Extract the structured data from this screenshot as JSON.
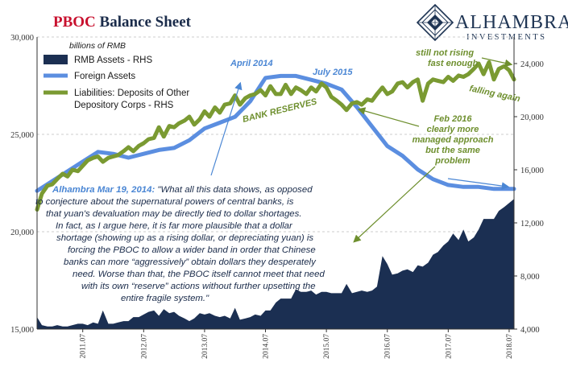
{
  "header": {
    "title_part1": "PBOC",
    "title_part2": " Balance Sheet",
    "brand_name": "ALHAMBRA",
    "brand_sub": "INVESTMENTS"
  },
  "chart_data": {
    "type": "line",
    "units": "billions of RMB",
    "x_ticks": [
      "2011.07",
      "2012.07",
      "2013.07",
      "2014.07",
      "2015.07",
      "2016.07",
      "2017.07",
      "2018.07"
    ],
    "x_range": [
      "2010.10",
      "2018.07"
    ],
    "y_left": {
      "ticks": [
        "15,000",
        "20,000",
        "25,000",
        "30,000"
      ],
      "range": [
        15000,
        30000
      ]
    },
    "y_right": {
      "ticks": [
        "4,000",
        "8,000",
        "12,000",
        "16,000",
        "20,000",
        "24,000"
      ],
      "range": [
        4000,
        26000
      ]
    },
    "grid": "horizontal dashed",
    "legend": {
      "placement": "top-left",
      "items": [
        {
          "label": "RMB Assets - RHS",
          "color": "#1b2f52"
        },
        {
          "label": "Foreign Assets",
          "color": "#5b8ee0"
        },
        {
          "label_line1": "Liabilities: Deposits of Other",
          "label_line2": "Depository Corps - RHS",
          "color": "#7a9a32"
        }
      ]
    },
    "series": [
      {
        "name": "RMB Assets - RHS",
        "axis": "right",
        "kind": "area",
        "color": "#1b2f52",
        "x": [
          2010.75,
          2010.83,
          2010.92,
          2011.0,
          2011.08,
          2011.17,
          2011.25,
          2011.33,
          2011.42,
          2011.5,
          2011.58,
          2011.67,
          2011.75,
          2011.83,
          2011.92,
          2012.0,
          2012.08,
          2012.17,
          2012.25,
          2012.33,
          2012.42,
          2012.5,
          2012.58,
          2012.67,
          2012.75,
          2012.83,
          2012.92,
          2013.0,
          2013.08,
          2013.17,
          2013.25,
          2013.33,
          2013.42,
          2013.5,
          2013.58,
          2013.67,
          2013.75,
          2013.83,
          2013.92,
          2014.0,
          2014.08,
          2014.17,
          2014.25,
          2014.33,
          2014.42,
          2014.5,
          2014.58,
          2014.67,
          2014.75,
          2014.83,
          2014.92,
          2015.0,
          2015.08,
          2015.17,
          2015.25,
          2015.33,
          2015.42,
          2015.5,
          2015.58,
          2015.67,
          2015.75,
          2015.83,
          2015.92,
          2016.0,
          2016.08,
          2016.17,
          2016.25,
          2016.33,
          2016.42,
          2016.5,
          2016.58,
          2016.67,
          2016.75,
          2016.83,
          2016.92,
          2017.0,
          2017.08,
          2017.17,
          2017.25,
          2017.33,
          2017.42,
          2017.5,
          2017.58,
          2017.67,
          2017.75,
          2017.83,
          2017.92,
          2018.0,
          2018.08,
          2018.17,
          2018.25,
          2018.33,
          2018.42,
          2018.5,
          2018.58
        ],
        "values": [
          4900,
          4300,
          4200,
          4200,
          4300,
          4200,
          4200,
          4300,
          4400,
          4400,
          4300,
          4500,
          4400,
          5400,
          4400,
          4400,
          4500,
          4600,
          4600,
          4900,
          4900,
          5100,
          5300,
          5400,
          5000,
          5500,
          5200,
          5300,
          5000,
          4800,
          4600,
          4800,
          5200,
          5100,
          5200,
          5000,
          4900,
          5000,
          4800,
          5600,
          4700,
          4800,
          4900,
          5100,
          5000,
          5400,
          5400,
          6000,
          6300,
          6300,
          6300,
          7000,
          6800,
          6800,
          6900,
          6600,
          6800,
          6800,
          6700,
          6700,
          6700,
          7400,
          6700,
          6800,
          6900,
          6800,
          6900,
          7200,
          9500,
          8900,
          8100,
          8200,
          8400,
          8500,
          8300,
          8800,
          8700,
          9000,
          9600,
          9800,
          10300,
          10600,
          11200,
          10700,
          11500,
          10600,
          10900,
          11500,
          12300,
          12300,
          12300,
          12900,
          13200,
          13500,
          13800
        ]
      },
      {
        "name": "Foreign Assets",
        "axis": "left",
        "kind": "line",
        "color": "#5b8ee0",
        "x": [
          2010.75,
          2011.0,
          2011.25,
          2011.5,
          2011.75,
          2012.0,
          2012.25,
          2012.5,
          2012.75,
          2013.0,
          2013.25,
          2013.5,
          2013.75,
          2014.0,
          2014.25,
          2014.5,
          2014.75,
          2015.0,
          2015.25,
          2015.5,
          2015.75,
          2016.0,
          2016.25,
          2016.5,
          2016.75,
          2017.0,
          2017.25,
          2017.5,
          2017.75,
          2018.0,
          2018.25,
          2018.58
        ],
        "values": [
          22100,
          22600,
          23100,
          23600,
          24100,
          24000,
          23800,
          24000,
          24200,
          24300,
          24700,
          25300,
          25600,
          25900,
          26700,
          27900,
          28000,
          28000,
          27800,
          27600,
          27300,
          26400,
          25400,
          24400,
          23900,
          23200,
          22700,
          22400,
          22300,
          22300,
          22200,
          22200
        ]
      },
      {
        "name": "Liabilities: Deposits of Other Depository Corps - RHS",
        "axis": "right",
        "kind": "line",
        "color": "#7a9a32",
        "x": [
          2010.75,
          2010.83,
          2010.92,
          2011.0,
          2011.08,
          2011.17,
          2011.25,
          2011.33,
          2011.42,
          2011.5,
          2011.58,
          2011.67,
          2011.75,
          2011.83,
          2011.92,
          2012.0,
          2012.08,
          2012.17,
          2012.25,
          2012.33,
          2012.42,
          2012.5,
          2012.58,
          2012.67,
          2012.75,
          2012.83,
          2012.92,
          2013.0,
          2013.08,
          2013.17,
          2013.25,
          2013.33,
          2013.42,
          2013.5,
          2013.58,
          2013.67,
          2013.75,
          2013.83,
          2013.92,
          2014.0,
          2014.08,
          2014.17,
          2014.25,
          2014.33,
          2014.42,
          2014.5,
          2014.58,
          2014.67,
          2014.75,
          2014.83,
          2014.92,
          2015.0,
          2015.08,
          2015.17,
          2015.25,
          2015.33,
          2015.42,
          2015.5,
          2015.58,
          2015.67,
          2015.75,
          2015.83,
          2015.92,
          2016.0,
          2016.08,
          2016.17,
          2016.25,
          2016.33,
          2016.42,
          2016.5,
          2016.58,
          2016.67,
          2016.75,
          2016.83,
          2016.92,
          2017.0,
          2017.08,
          2017.17,
          2017.25,
          2017.33,
          2017.42,
          2017.5,
          2017.58,
          2017.67,
          2017.75,
          2017.83,
          2017.92,
          2018.0,
          2018.08,
          2018.17,
          2018.25,
          2018.33,
          2018.42,
          2018.5,
          2018.58
        ],
        "values": [
          13000,
          14200,
          14800,
          14900,
          15300,
          15700,
          15500,
          16000,
          15900,
          16300,
          16700,
          16900,
          17000,
          16600,
          16900,
          17000,
          17100,
          17400,
          17700,
          17400,
          17800,
          18000,
          18300,
          18400,
          19200,
          18500,
          19300,
          19200,
          19500,
          19700,
          20000,
          19400,
          19800,
          20400,
          20000,
          20700,
          20300,
          20900,
          21000,
          21600,
          20900,
          21400,
          21600,
          21700,
          22000,
          21600,
          22300,
          21700,
          21700,
          22400,
          21700,
          22200,
          22000,
          21700,
          22200,
          21900,
          22500,
          22200,
          21500,
          21200,
          20900,
          20500,
          21000,
          21100,
          20900,
          21300,
          21200,
          21700,
          22200,
          21700,
          21900,
          22500,
          22600,
          22200,
          22600,
          22800,
          21200,
          22500,
          22800,
          22700,
          22600,
          23000,
          22700,
          23100,
          23000,
          23200,
          23600,
          24000,
          23200,
          24100,
          22800,
          23600,
          23800,
          23500,
          22800
        ]
      }
    ],
    "annotations": {
      "april_2014": "April 2014",
      "july_2015": "July 2015",
      "bank_reserves": "BANK RESERVES",
      "not_rising_line1": "still not rising",
      "not_rising_line2": "fast enough",
      "falling_again": "falling again",
      "feb2016_lines": [
        "Feb 2016",
        "clearly more",
        "managed approach",
        "but the same",
        "problem"
      ],
      "quote_lead": "Alhambra Mar 19, 2014:",
      "quote_first_rest": " \"What all this data shows, as opposed",
      "quote_lines": [
        "to conjecture about the supernatural powers of central banks, is",
        "that yuan's devaluation may be directly tied to dollar shortages.",
        "In fact, as I argue here, it is far more plausible that a dollar",
        "shortage (showing up as a rising dollar, or depreciating yuan) is",
        "forcing the PBOC to allow a wider band in order that Chinese",
        "banks can more “aggressively” obtain dollars they desperately",
        "need. Worse than that, the PBOC itself cannot meet that need",
        "with its own “reserve” actions without further upsetting the",
        "entire fragile system.\""
      ]
    }
  }
}
